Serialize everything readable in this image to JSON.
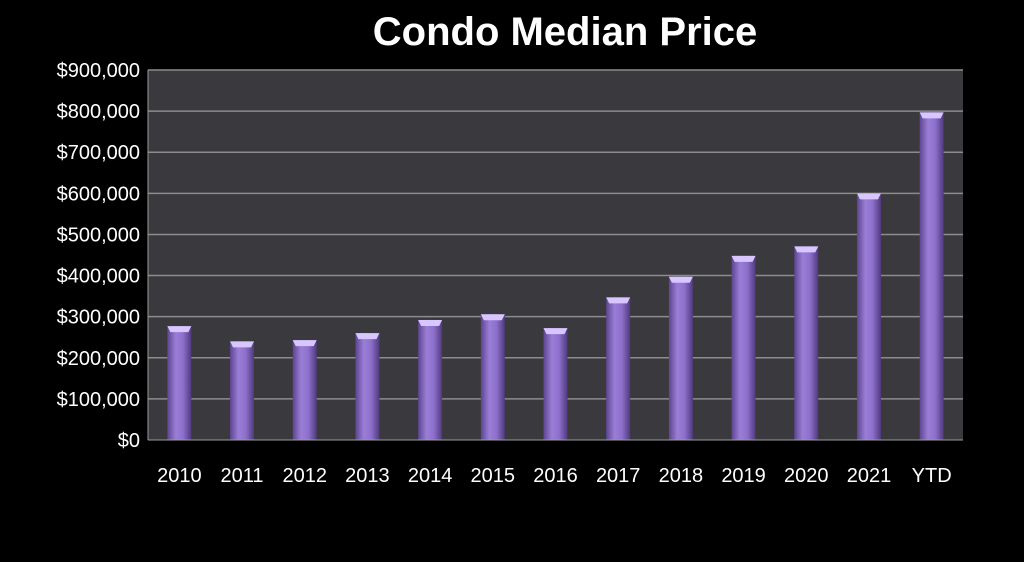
{
  "chart_data": {
    "type": "bar",
    "title": "Condo Median Price",
    "xlabel": "",
    "ylabel": "",
    "categories": [
      "2010",
      "2011",
      "2012",
      "2013",
      "2014",
      "2015",
      "2016",
      "2017",
      "2018",
      "2019",
      "2020",
      "2021",
      "YTD"
    ],
    "values": [
      277000,
      240000,
      243000,
      260000,
      292000,
      306000,
      272000,
      347000,
      397000,
      448000,
      471000,
      600000,
      797000
    ],
    "ylim": [
      0,
      900000
    ],
    "yticks": [
      "$0",
      "$100,000",
      "$200,000",
      "$300,000",
      "$400,000",
      "$500,000",
      "$600,000",
      "$700,000",
      "$800,000",
      "$900,000"
    ],
    "grid": true,
    "legend": "none",
    "colors": {
      "background": "#000000",
      "plot_area": "#3a393d",
      "gridline": "#8c8c8c",
      "bar": "#8a6bc2",
      "bar_top": "#d7c6ff",
      "text": "#ffffff"
    }
  }
}
